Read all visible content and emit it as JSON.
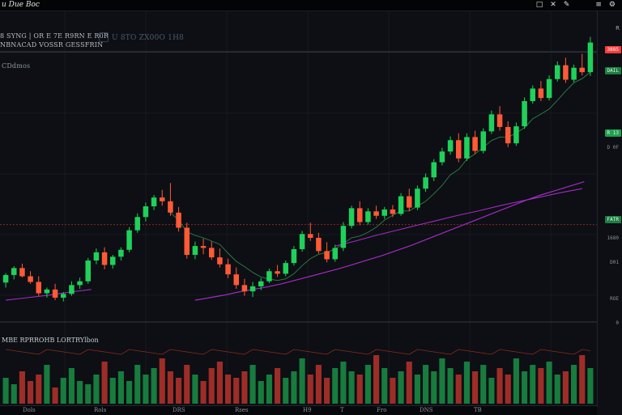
{
  "app": {
    "title": "u Due Boc",
    "toolbar_icons": [
      "document-icon",
      "close-icon",
      "pen-icon",
      "ruler-icon",
      "settings-icon"
    ]
  },
  "chart_header": {
    "line1": "8 SYNG | OR E 7E R9RN E R0R",
    "line2": "NBNACAD  VOSSR GESSFRIN",
    "ticker_overlay": "U  8TO  ZX00O 1H8",
    "line3": "CDdmos"
  },
  "volume_panel": {
    "legend": "MBE RPRROHB  LORTRYlbon"
  },
  "price_axis": {
    "top_label": "R",
    "tags": [
      {
        "text": "3885",
        "color": "#ff3b3b",
        "text_color": "#ffffff"
      },
      {
        "text": "DAIL",
        "color": "#1e7d45",
        "text_color": "#d8ffe6"
      },
      {
        "text": "R 13",
        "color": "#1fa050",
        "text_color": "#d8ffe6"
      },
      {
        "text": "D 0F",
        "color": "#ffffff",
        "text_color": "#ffffff"
      },
      {
        "text": "FATR",
        "color": "#1e7d45",
        "text_color": "#d8ffe6"
      },
      {
        "text": "1680",
        "color": "#ffffff",
        "text_color": "#ffffff"
      },
      {
        "text": "D01",
        "color": "#ffffff",
        "text_color": "#ffffff"
      },
      {
        "text": "ROE",
        "color": "#ffffff",
        "text_color": "#ffffff"
      },
      {
        "text": "0",
        "color": "#ffffff",
        "text_color": "#ffffff"
      }
    ]
  },
  "time_axis": [
    "Dols",
    "Rols",
    "DRS",
    "Rses",
    "H9",
    "T",
    "Fro",
    "DNS",
    "TB"
  ],
  "colors": {
    "background": "#0d0f14",
    "up": "#1fd15a",
    "down": "#ff5a36",
    "ma": "#a02cc0",
    "ma_short": "#2f7f45",
    "hline": "#8a2a1e"
  },
  "chart_data": {
    "type": "candlestick",
    "title": "",
    "candles": [
      [
        96.0,
        97.5,
        95.2,
        97.2
      ],
      [
        97.2,
        98.6,
        96.5,
        98.3
      ],
      [
        98.3,
        99.0,
        96.8,
        97.0
      ],
      [
        97.0,
        97.8,
        95.8,
        96.1
      ],
      [
        96.1,
        97.0,
        93.9,
        94.3
      ],
      [
        94.3,
        95.2,
        93.6,
        94.9
      ],
      [
        94.9,
        95.8,
        93.2,
        93.6
      ],
      [
        93.6,
        94.5,
        93.0,
        94.2
      ],
      [
        94.2,
        96.2,
        93.9,
        95.6
      ],
      [
        95.6,
        96.8,
        95.0,
        96.2
      ],
      [
        96.2,
        99.9,
        95.8,
        99.5
      ],
      [
        99.5,
        101.4,
        98.9,
        100.8
      ],
      [
        100.8,
        101.6,
        98.1,
        98.8
      ],
      [
        98.8,
        100.4,
        98.2,
        100.1
      ],
      [
        100.1,
        101.6,
        99.5,
        101.2
      ],
      [
        101.2,
        104.8,
        100.8,
        104.3
      ],
      [
        104.3,
        107.0,
        103.9,
        106.4
      ],
      [
        106.4,
        108.7,
        105.7,
        108.1
      ],
      [
        108.1,
        109.9,
        107.5,
        109.5
      ],
      [
        109.5,
        110.7,
        108.2,
        108.9
      ],
      [
        108.9,
        111.8,
        106.6,
        107.1
      ],
      [
        107.1,
        108.0,
        104.1,
        104.7
      ],
      [
        104.7,
        105.5,
        99.8,
        100.4
      ],
      [
        100.4,
        102.5,
        99.7,
        101.8
      ],
      [
        101.8,
        103.0,
        100.5,
        101.5
      ],
      [
        101.5,
        102.5,
        99.6,
        100.0
      ],
      [
        100.0,
        101.4,
        98.4,
        98.9
      ],
      [
        98.9,
        99.8,
        96.7,
        97.3
      ],
      [
        97.3,
        98.4,
        95.0,
        95.6
      ],
      [
        95.6,
        96.6,
        93.9,
        94.6
      ],
      [
        94.6,
        96.1,
        93.7,
        95.4
      ],
      [
        95.4,
        96.7,
        94.8,
        96.2
      ],
      [
        96.2,
        98.2,
        95.9,
        97.8
      ],
      [
        97.8,
        98.8,
        96.9,
        97.4
      ],
      [
        97.4,
        99.5,
        97.0,
        99.1
      ],
      [
        99.1,
        101.8,
        98.7,
        101.3
      ],
      [
        101.3,
        104.2,
        100.9,
        103.7
      ],
      [
        103.7,
        105.5,
        102.6,
        103.1
      ],
      [
        103.1,
        103.9,
        100.6,
        101.0
      ],
      [
        101.0,
        102.4,
        99.2,
        99.7
      ],
      [
        99.7,
        102.0,
        99.3,
        101.5
      ],
      [
        101.5,
        105.6,
        101.0,
        105.0
      ],
      [
        105.0,
        108.2,
        104.6,
        107.8
      ],
      [
        107.8,
        108.9,
        105.1,
        105.6
      ],
      [
        105.6,
        107.8,
        105.2,
        107.3
      ],
      [
        107.3,
        108.2,
        106.1,
        106.6
      ],
      [
        106.6,
        108.0,
        106.1,
        107.6
      ],
      [
        107.6,
        108.3,
        106.4,
        106.9
      ],
      [
        106.9,
        110.2,
        106.6,
        109.7
      ],
      [
        109.7,
        110.9,
        107.3,
        107.9
      ],
      [
        107.9,
        111.4,
        107.5,
        110.9
      ],
      [
        110.9,
        113.3,
        110.4,
        112.7
      ],
      [
        112.7,
        115.6,
        112.1,
        115.1
      ],
      [
        115.1,
        117.4,
        114.6,
        116.8
      ],
      [
        116.8,
        119.2,
        116.3,
        118.6
      ],
      [
        118.6,
        119.7,
        115.1,
        115.7
      ],
      [
        115.7,
        119.7,
        115.3,
        119.1
      ],
      [
        119.1,
        120.1,
        116.4,
        116.9
      ],
      [
        116.9,
        120.5,
        116.5,
        120.0
      ],
      [
        120.0,
        123.3,
        119.6,
        122.7
      ],
      [
        122.7,
        124.0,
        120.1,
        120.7
      ],
      [
        120.7,
        121.6,
        117.5,
        118.1
      ],
      [
        118.1,
        121.4,
        117.7,
        120.8
      ],
      [
        120.8,
        125.4,
        120.4,
        124.8
      ],
      [
        124.8,
        127.3,
        124.4,
        126.8
      ],
      [
        126.8,
        128.0,
        124.8,
        125.3
      ],
      [
        125.3,
        128.9,
        124.9,
        128.3
      ],
      [
        128.3,
        131.1,
        127.9,
        130.5
      ],
      [
        130.5,
        131.7,
        127.7,
        128.2
      ],
      [
        128.2,
        130.6,
        127.8,
        130.1
      ],
      [
        130.1,
        132.3,
        128.9,
        129.4
      ],
      [
        129.4,
        135.0,
        128.8,
        134.1
      ]
    ],
    "ma_long": [
      93.2,
      93.6,
      94.0,
      94.5,
      94.9,
      95.3,
      95.8,
      96.4,
      97.0,
      97.6,
      98.2,
      98.9,
      99.6,
      100.3,
      101.1,
      101.9,
      102.8,
      103.7,
      104.6,
      105.5,
      106.4,
      107.3,
      108.2,
      109.1,
      109.9,
      110.6,
      111.3,
      112.0
    ],
    "ma_mid": [
      101.8,
      102.6,
      103.5,
      104.3,
      105.1,
      105.9,
      106.7,
      107.4,
      108.2,
      108.9,
      109.6,
      110.3,
      110.9
    ],
    "hline_level": 105.2,
    "volume": [
      8,
      6,
      10,
      7,
      9,
      12,
      5,
      8,
      11,
      7,
      6,
      9,
      13,
      8,
      10,
      7,
      12,
      9,
      11,
      14,
      10,
      8,
      12,
      9,
      7,
      11,
      13,
      9,
      8,
      10,
      12,
      7,
      9,
      11,
      8,
      10,
      14,
      9,
      12,
      8,
      11,
      13,
      10,
      9,
      12,
      15,
      11,
      8,
      10,
      13,
      9,
      12,
      10,
      14,
      11,
      9,
      13,
      10,
      12,
      8,
      11,
      9,
      14,
      10,
      12,
      11,
      13,
      9,
      10,
      12,
      15,
      11
    ]
  }
}
